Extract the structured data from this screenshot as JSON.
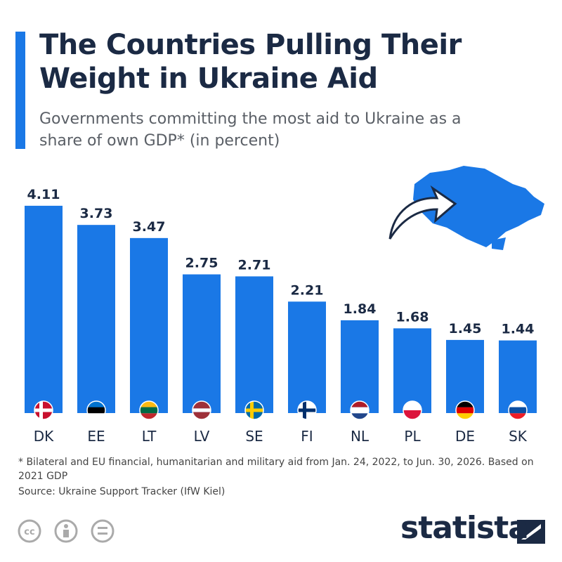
{
  "chart_data": {
    "type": "bar",
    "title": "The Countries Pulling Their Weight in Ukraine Aid",
    "subtitle": "Governments committing the most aid to Ukraine as a share of own GDP* (in percent)",
    "categories": [
      "DK",
      "EE",
      "LT",
      "LV",
      "SE",
      "FI",
      "NL",
      "PL",
      "DE",
      "SK"
    ],
    "values": [
      4.11,
      3.73,
      3.47,
      2.75,
      2.71,
      2.21,
      1.84,
      1.68,
      1.45,
      1.44
    ],
    "color": "#1a78e6",
    "footnote": "* Bilateral and EU financial, humanitarian and military aid from Jan. 24, 2022, to Jun. 30, 2026. Based on 2021 GDP",
    "source": "Source: Ukraine Support Tracker (IfW Kiel)",
    "brand": "statista"
  }
}
